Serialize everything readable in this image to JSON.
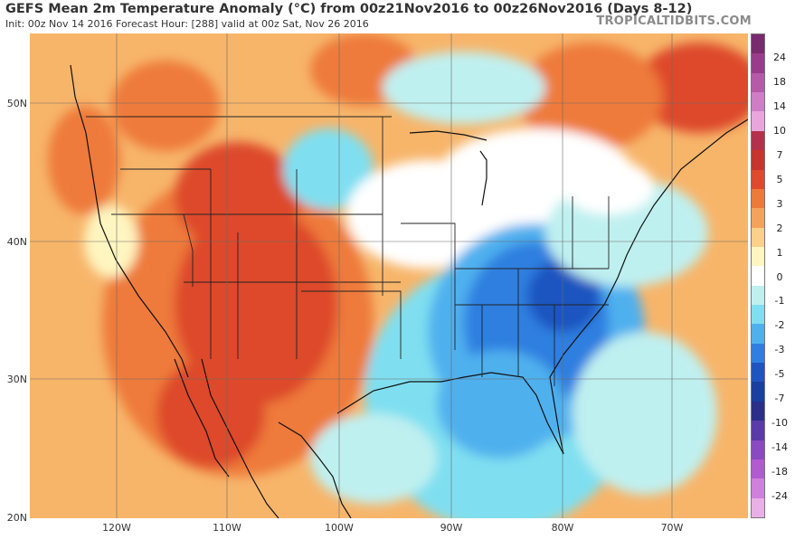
{
  "header": {
    "title": "GEFS Mean 2m Temperature Anomaly (°C) from 00z21Nov2016 to 00z26Nov2016 (Days 8-12)",
    "subtitle": "Init: 00z Nov 14 2016   Forecast Hour: [288]   valid at 00z Sat, Nov 26 2016",
    "brand": "TROPICALTIDBITS.COM"
  },
  "axes": {
    "y_labels": [
      "50N",
      "40N",
      "30N",
      "20N"
    ],
    "x_labels": [
      "120W",
      "110W",
      "100W",
      "90W",
      "80W",
      "70W"
    ]
  },
  "colorbar": {
    "labels": [
      "24",
      "18",
      "14",
      "10",
      "7",
      "5",
      "3",
      "2",
      "1",
      "0",
      "-1",
      "-2",
      "-3",
      "-5",
      "-7",
      "-10",
      "-14",
      "-18",
      "-24"
    ],
    "colors": [
      "#7a2a6e",
      "#9b3b8c",
      "#b65aa8",
      "#d07cc6",
      "#e8a6dc",
      "#b5304a",
      "#c7342d",
      "#dd4a2c",
      "#ee7a3a",
      "#f5a35a",
      "#fbd08a",
      "#fff5c0",
      "#ffffff",
      "#bff0f0",
      "#7fdff0",
      "#4fb0ee",
      "#2f7fe0",
      "#1f55c0",
      "#193fa0",
      "#2a2f8a",
      "#5a3aa8",
      "#8a4ac0",
      "#b25ad0",
      "#cf80dc",
      "#e8b0e6"
    ]
  }
}
